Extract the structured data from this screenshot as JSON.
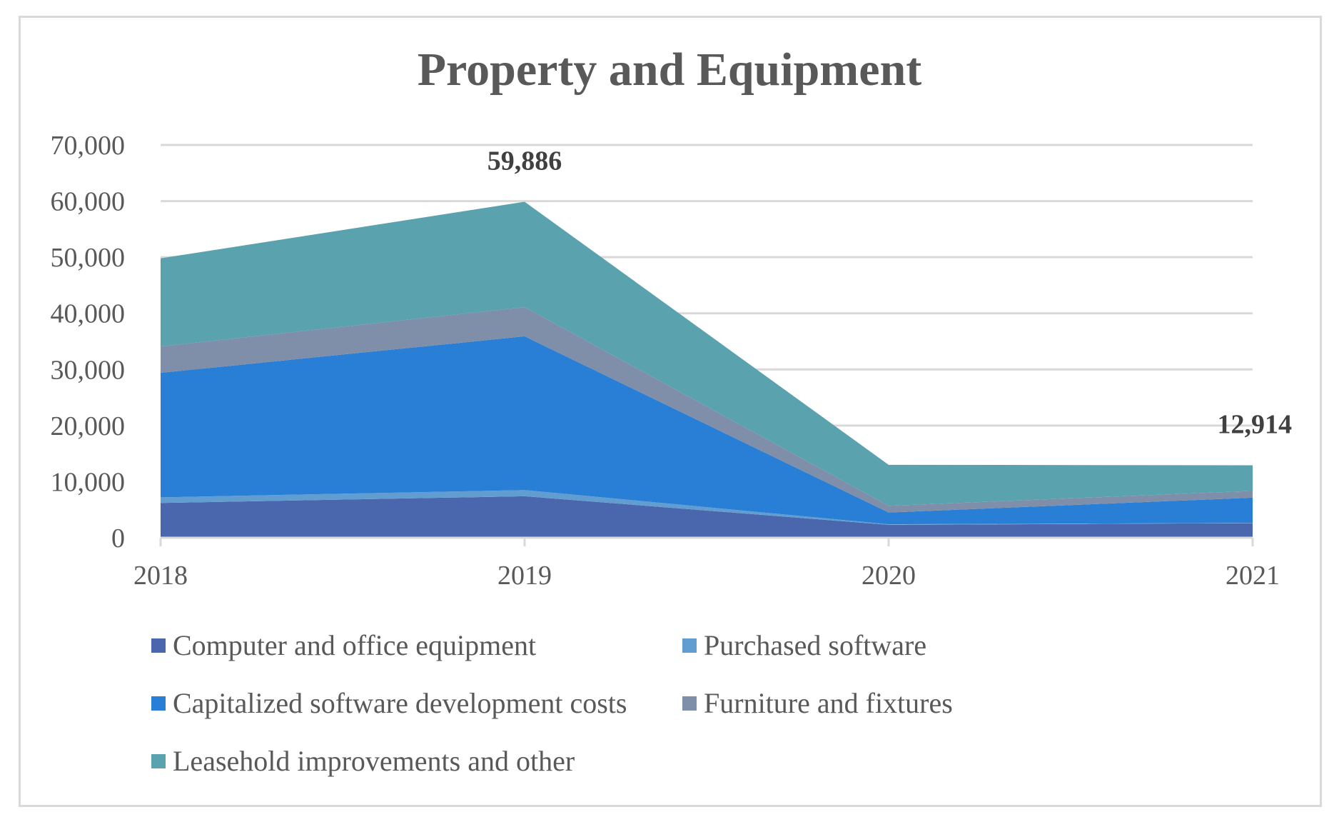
{
  "chart_data": {
    "type": "area",
    "stacked": true,
    "title": "Property and Equipment",
    "xlabel": "",
    "ylabel": "",
    "categories": [
      "2018",
      "2019",
      "2020",
      "2021"
    ],
    "ylim": [
      0,
      70000
    ],
    "yticks": [
      0,
      10000,
      20000,
      30000,
      40000,
      50000,
      60000,
      70000
    ],
    "ytick_labels": [
      "0",
      "10,000",
      "20,000",
      "30,000",
      "40,000",
      "50,000",
      "60,000",
      "70,000"
    ],
    "grid": true,
    "legend_position": "bottom",
    "series": [
      {
        "name": "Computer and office equipment",
        "color": "#4a66ac",
        "values": [
          6200,
          7400,
          2300,
          2600
        ]
      },
      {
        "name": "Purchased software",
        "color": "#629dd1",
        "values": [
          1000,
          1100,
          100,
          50
        ]
      },
      {
        "name": "Capitalized software development costs",
        "color": "#297fd5",
        "values": [
          22200,
          27400,
          2100,
          4500
        ]
      },
      {
        "name": "Furniture and fixtures",
        "color": "#7f8fa9",
        "values": [
          4700,
          5200,
          1200,
          1200
        ]
      },
      {
        "name": "Leasehold improvements and other",
        "color": "#5aa2ae",
        "values": [
          15700,
          18786,
          7300,
          4564
        ]
      }
    ],
    "annotations": [
      {
        "category": "2019",
        "text": "59,886"
      },
      {
        "category": "2021",
        "text": "12,914"
      }
    ]
  }
}
